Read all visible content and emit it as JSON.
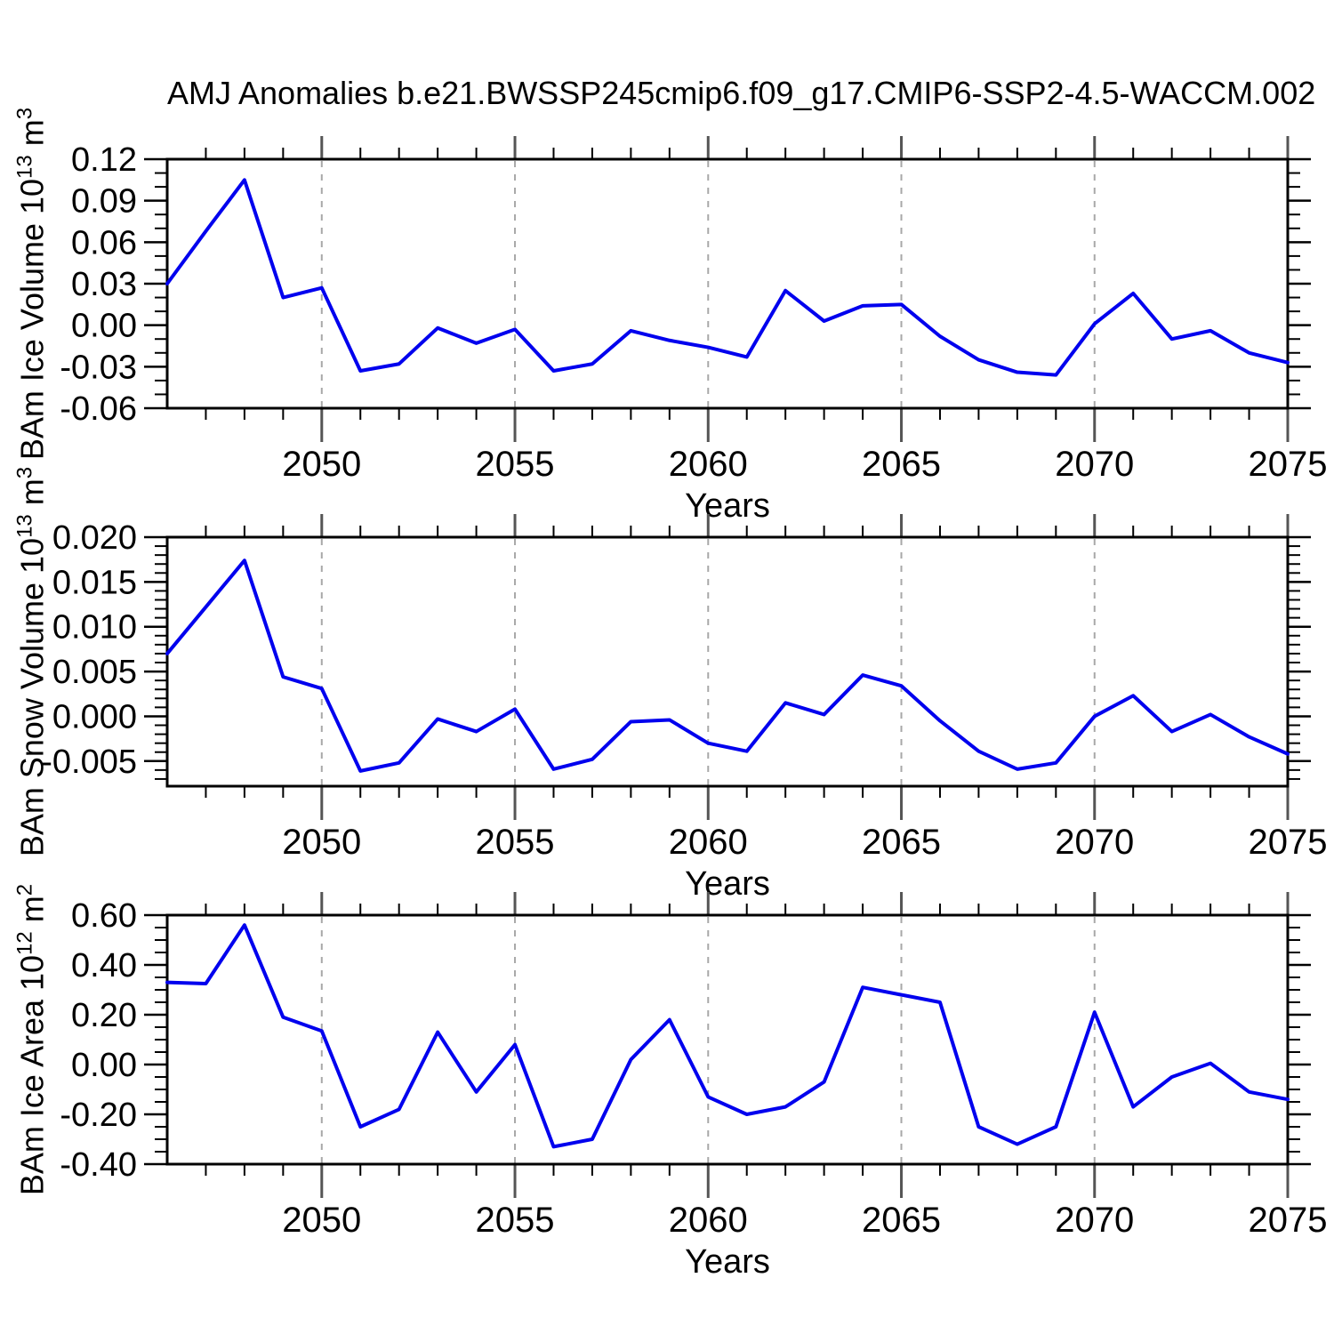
{
  "title": "AMJ Anomalies b.e21.BWSSP245cmip6.f09_g17.CMIP6-SSP2-4.5-WACCM.002",
  "colors": {
    "line": "#0000ee",
    "grid": "#a8a8a8",
    "axis": "#000000",
    "major_tick": "#555555"
  },
  "x_axis": {
    "label": "Years",
    "start": 2046,
    "end": 2075,
    "major_ticks": [
      2050,
      2055,
      2060,
      2065,
      2070,
      2075
    ],
    "major_tick_labels": [
      "2050",
      "2055",
      "2060",
      "2065",
      "2070",
      "2075"
    ],
    "minor_step": 1,
    "gridlines": [
      2050,
      2055,
      2060,
      2065,
      2070
    ]
  },
  "chart_data": [
    {
      "type": "line",
      "name": "ice-volume",
      "ylabel": {
        "text": "BAm Ice Volume",
        "base": "10",
        "exp": "13",
        "unit": "m",
        "unit_exp": "3"
      },
      "ylim": [
        -0.06,
        0.12
      ],
      "ytick_values": [
        0.12,
        0.09,
        0.06,
        0.03,
        0.0,
        -0.03,
        -0.06
      ],
      "ytick_labels": [
        "0.12",
        "0.09",
        "0.06",
        "0.03",
        "0.00",
        "-0.03",
        "-0.06"
      ],
      "yminor_step": 0.01,
      "x": [
        2046,
        2047,
        2048,
        2049,
        2050,
        2051,
        2052,
        2053,
        2054,
        2055,
        2056,
        2057,
        2058,
        2059,
        2060,
        2061,
        2062,
        2063,
        2064,
        2065,
        2066,
        2067,
        2068,
        2069,
        2070,
        2071,
        2072,
        2073,
        2074,
        2075
      ],
      "values": [
        0.03,
        0.068,
        0.105,
        0.02,
        0.027,
        -0.033,
        -0.028,
        -0.002,
        -0.013,
        -0.003,
        -0.033,
        -0.028,
        -0.004,
        -0.011,
        -0.016,
        -0.023,
        0.025,
        0.003,
        0.014,
        0.015,
        -0.008,
        -0.025,
        -0.034,
        -0.036,
        0.001,
        0.023,
        -0.01,
        -0.004,
        -0.02,
        -0.027
      ]
    },
    {
      "type": "line",
      "name": "snow-volume",
      "ylabel": {
        "text": "BAm Snow Volume",
        "base": "10",
        "exp": "13",
        "unit": "m",
        "unit_exp": "3"
      },
      "ylim": [
        -0.0078,
        0.02
      ],
      "ytick_values": [
        0.02,
        0.015,
        0.01,
        0.005,
        0.0,
        -0.005
      ],
      "ytick_labels": [
        "0.020",
        "0.015",
        "0.010",
        "0.005",
        "0.000",
        "-0.005"
      ],
      "yminor_step": 0.001,
      "x": [
        2046,
        2047,
        2048,
        2049,
        2050,
        2051,
        2052,
        2053,
        2054,
        2055,
        2056,
        2057,
        2058,
        2059,
        2060,
        2061,
        2062,
        2063,
        2064,
        2065,
        2066,
        2067,
        2068,
        2069,
        2070,
        2071,
        2072,
        2073,
        2074,
        2075
      ],
      "values": [
        0.007,
        0.0122,
        0.0174,
        0.0044,
        0.0031,
        -0.0061,
        -0.0052,
        -0.0003,
        -0.0017,
        0.0008,
        -0.0059,
        -0.0048,
        -0.0006,
        -0.0004,
        -0.003,
        -0.0039,
        0.0015,
        0.0002,
        0.0046,
        0.0034,
        -0.0005,
        -0.0039,
        -0.0059,
        -0.0052,
        0.0,
        0.0023,
        -0.0017,
        0.0002,
        -0.0023,
        -0.0042
      ]
    },
    {
      "type": "line",
      "name": "ice-area",
      "ylabel": {
        "text": "BAm Ice Area",
        "base": "10",
        "exp": "12",
        "unit": "m",
        "unit_exp": "2"
      },
      "ylim": [
        -0.4,
        0.6
      ],
      "ytick_values": [
        0.6,
        0.4,
        0.2,
        0.0,
        -0.2,
        -0.4
      ],
      "ytick_labels": [
        "0.60",
        "0.40",
        "0.20",
        "0.00",
        "-0.20",
        "-0.40"
      ],
      "yminor_step": 0.05,
      "x": [
        2046,
        2047,
        2048,
        2049,
        2050,
        2051,
        2052,
        2053,
        2054,
        2055,
        2056,
        2057,
        2058,
        2059,
        2060,
        2061,
        2062,
        2063,
        2064,
        2065,
        2066,
        2067,
        2068,
        2069,
        2070,
        2071,
        2072,
        2073,
        2074,
        2075
      ],
      "values": [
        0.33,
        0.325,
        0.56,
        0.19,
        0.135,
        -0.25,
        -0.18,
        0.13,
        -0.11,
        0.08,
        -0.33,
        -0.3,
        0.02,
        0.18,
        -0.13,
        -0.2,
        -0.17,
        -0.07,
        0.31,
        0.28,
        0.25,
        -0.25,
        -0.32,
        -0.25,
        0.21,
        -0.17,
        -0.05,
        0.005,
        -0.11,
        -0.14
      ]
    }
  ]
}
